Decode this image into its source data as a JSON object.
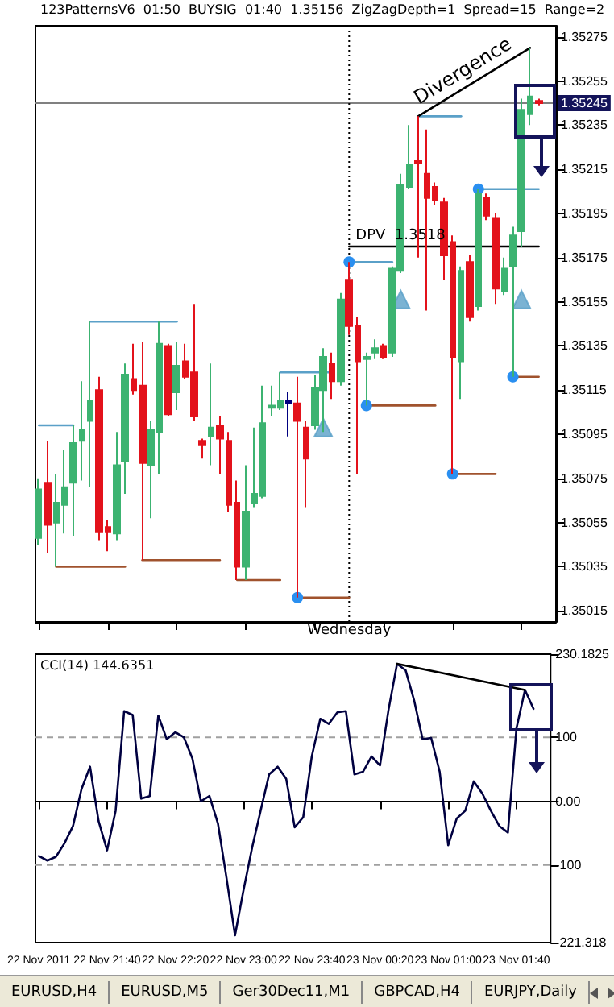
{
  "chart_data": [
    {
      "type": "candlestick",
      "title": "123PatternsV6  01:50  BUYSIG  01:40  1.35156  ZigZagDepth=1  Spread=15  Range=2",
      "x": [
        "2011-11-22T21:00",
        "2011-11-22T21:05",
        "2011-11-22T21:10",
        "2011-11-22T21:15",
        "2011-11-22T21:20",
        "2011-11-22T21:25",
        "2011-11-22T21:30",
        "2011-11-22T21:35",
        "2011-11-22T21:40",
        "2011-11-22T21:45",
        "2011-11-22T21:50",
        "2011-11-22T21:55",
        "2011-11-22T22:00",
        "2011-11-22T22:05",
        "2011-11-22T22:10",
        "2011-11-22T22:15",
        "2011-11-22T22:20",
        "2011-11-22T22:25",
        "2011-11-22T22:30",
        "2011-11-22T22:35",
        "2011-11-22T22:40",
        "2011-11-22T22:45",
        "2011-11-22T22:50",
        "2011-11-22T22:55",
        "2011-11-22T23:00",
        "2011-11-22T23:05",
        "2011-11-22T23:10",
        "2011-11-22T23:15",
        "2011-11-22T23:20",
        "2011-11-22T23:25",
        "2011-11-22T23:30",
        "2011-11-22T23:35",
        "2011-11-22T23:40",
        "2011-11-22T23:45",
        "2011-11-22T23:50",
        "2011-11-22T23:55",
        "2011-11-23T00:00",
        "2011-11-23T00:05",
        "2011-11-23T00:10",
        "2011-11-23T00:15",
        "2011-11-23T00:20",
        "2011-11-23T00:25",
        "2011-11-23T00:30",
        "2011-11-23T00:35",
        "2011-11-23T00:40",
        "2011-11-23T00:45",
        "2011-11-23T00:50",
        "2011-11-23T00:55",
        "2011-11-23T01:00",
        "2011-11-23T01:05",
        "2011-11-23T01:10",
        "2011-11-23T01:15",
        "2011-11-23T01:20",
        "2011-11-23T01:25",
        "2011-11-23T01:30",
        "2011-11-23T01:35",
        "2011-11-23T01:40",
        "2011-11-23T01:45",
        "2011-11-23T01:50"
      ],
      "ohlc": [
        [
          1.35048,
          1.35075,
          1.35045,
          1.3507
        ],
        [
          1.35073,
          1.35092,
          1.35041,
          1.35054
        ],
        [
          1.35055,
          1.35077,
          1.35035,
          1.35064
        ],
        [
          1.35063,
          1.35088,
          1.3505,
          1.35071
        ],
        [
          1.35073,
          1.35099,
          1.35049,
          1.35091
        ],
        [
          1.35092,
          1.35119,
          1.35074,
          1.35097
        ],
        [
          1.35101,
          1.35146,
          1.35071,
          1.3511
        ],
        [
          1.35115,
          1.35121,
          1.35047,
          1.35051
        ],
        [
          1.35053,
          1.35056,
          1.35042,
          1.35051
        ],
        [
          1.3505,
          1.35096,
          1.35047,
          1.35081
        ],
        [
          1.35083,
          1.35127,
          1.35068,
          1.35122
        ],
        [
          1.3512,
          1.35136,
          1.35113,
          1.35115
        ],
        [
          1.35117,
          1.35137,
          1.35038,
          1.35082
        ],
        [
          1.35081,
          1.35101,
          1.35057,
          1.35097
        ],
        [
          1.35096,
          1.35146,
          1.35077,
          1.35136
        ],
        [
          1.35135,
          1.35136,
          1.35103,
          1.35104
        ],
        [
          1.35114,
          1.35137,
          1.35106,
          1.35126
        ],
        [
          1.35128,
          1.35136,
          1.3512,
          1.35121
        ],
        [
          1.35123,
          1.35154,
          1.35101,
          1.35103
        ],
        [
          1.35092,
          1.35093,
          1.35084,
          1.3509
        ],
        [
          1.35094,
          1.35127,
          1.35081,
          1.35098
        ],
        [
          1.35099,
          1.35103,
          1.35077,
          1.35093
        ],
        [
          1.35092,
          1.35096,
          1.3506,
          1.35063
        ],
        [
          1.35064,
          1.35074,
          1.35029,
          1.35035
        ],
        [
          1.35035,
          1.35081,
          1.35029,
          1.3506
        ],
        [
          1.35064,
          1.35098,
          1.35062,
          1.35068
        ],
        [
          1.35067,
          1.35117,
          1.35066,
          1.351
        ],
        [
          1.35107,
          1.35117,
          1.35103,
          1.35108
        ],
        [
          1.35107,
          1.35123,
          1.35106,
          1.3511
        ],
        [
          1.3511,
          1.35114,
          1.35094,
          1.35109
        ],
        [
          1.35109,
          1.35121,
          1.35021,
          1.35101
        ],
        [
          1.35098,
          1.35101,
          1.35062,
          1.35084
        ],
        [
          1.35099,
          1.35122,
          1.35097,
          1.35116
        ],
        [
          1.35115,
          1.35134,
          1.35096,
          1.3513
        ],
        [
          1.35127,
          1.35132,
          1.35111,
          1.35119
        ],
        [
          1.35119,
          1.35159,
          1.35117,
          1.35156
        ],
        [
          1.35165,
          1.35173,
          1.3514,
          1.35144
        ],
        [
          1.35144,
          1.35148,
          1.35077,
          1.35128
        ],
        [
          1.35129,
          1.35132,
          1.35108,
          1.3513
        ],
        [
          1.35132,
          1.35138,
          1.35129,
          1.35134
        ],
        [
          1.35135,
          1.35136,
          1.35129,
          1.3513
        ],
        [
          1.35132,
          1.35171,
          1.3513,
          1.3517
        ],
        [
          1.35169,
          1.35213,
          1.35168,
          1.35208
        ],
        [
          1.35207,
          1.35235,
          1.35206,
          1.35217
        ],
        [
          1.35219,
          1.35239,
          1.35175,
          1.35218
        ],
        [
          1.35213,
          1.35233,
          1.35151,
          1.35202
        ],
        [
          1.35207,
          1.35209,
          1.35199,
          1.35201
        ],
        [
          1.352,
          1.35202,
          1.35165,
          1.35176
        ],
        [
          1.35182,
          1.35185,
          1.35077,
          1.3513
        ],
        [
          1.35128,
          1.35171,
          1.35111,
          1.35169
        ],
        [
          1.35173,
          1.35176,
          1.35146,
          1.35148
        ],
        [
          1.35153,
          1.35206,
          1.35151,
          1.35204
        ],
        [
          1.35202,
          1.35204,
          1.35192,
          1.35194
        ],
        [
          1.35193,
          1.35195,
          1.35154,
          1.35161
        ],
        [
          1.3516,
          1.35175,
          1.35158,
          1.3517
        ],
        [
          1.35171,
          1.35189,
          1.35121,
          1.35185
        ],
        [
          1.35187,
          1.35247,
          1.3518,
          1.35242
        ],
        [
          1.3524,
          1.3527,
          1.35235,
          1.35248
        ],
        [
          1.35246,
          1.35247,
          1.35244,
          1.35245
        ]
      ],
      "colors": [
        "#3cb371",
        "#e3121b",
        "#3cb371",
        "#3cb371",
        "#3cb371",
        "#3cb371",
        "#3cb371",
        "#e3121b",
        "#e3121b",
        "#3cb371",
        "#3cb371",
        "#e3121b",
        "#e3121b",
        "#3cb371",
        "#3cb371",
        "#e3121b",
        "#3cb371",
        "#e3121b",
        "#e3121b",
        "#e3121b",
        "#3cb371",
        "#e3121b",
        "#e3121b",
        "#e3121b",
        "#3cb371",
        "#3cb371",
        "#3cb371",
        "#3cb371",
        "#3cb371",
        "#000080",
        "#e3121b",
        "#e3121b",
        "#3cb371",
        "#3cb371",
        "#e3121b",
        "#3cb371",
        "#e3121b",
        "#e3121b",
        "#3cb371",
        "#3cb371",
        "#e3121b",
        "#3cb371",
        "#3cb371",
        "#3cb371",
        "#e3121b",
        "#e3121b",
        "#e3121b",
        "#e3121b",
        "#e3121b",
        "#3cb371",
        "#e3121b",
        "#3cb371",
        "#e3121b",
        "#e3121b",
        "#3cb371",
        "#3cb371",
        "#3cb371",
        "#3cb371",
        "#e3121b"
      ],
      "series": [
        {
          "type": "line",
          "color": "#5aa0c8",
          "x": [
            "2011-11-22T21:30",
            "2011-11-22T22:20"
          ],
          "values": [
            1.35146,
            1.35146
          ]
        },
        {
          "type": "line",
          "color": "#5aa0c8",
          "x": [
            "2011-11-22T21:00",
            "2011-11-22T21:20"
          ],
          "values": [
            1.35099,
            1.35099
          ]
        },
        {
          "type": "line",
          "color": "#5aa0c8",
          "x": [
            "2011-11-22T23:20",
            "2011-11-22T23:50"
          ],
          "values": [
            1.35123,
            1.35123
          ]
        },
        {
          "type": "line",
          "color": "#5aa0c8",
          "marker": "circle",
          "x": [
            "2011-11-23T00:00",
            "2011-11-23T00:25"
          ],
          "values": [
            1.35173,
            1.35173
          ]
        },
        {
          "type": "line",
          "color": "#5aa0c8",
          "x": [
            "2011-11-23T00:40",
            "2011-11-23T01:05"
          ],
          "values": [
            1.35239,
            1.35239
          ]
        },
        {
          "type": "line",
          "color": "#5aa0c8",
          "marker": "circle",
          "x": [
            "2011-11-23T01:15",
            "2011-11-23T01:50"
          ],
          "values": [
            1.35206,
            1.35206
          ]
        },
        {
          "type": "line",
          "color": "#a0522d",
          "x": [
            "2011-11-22T21:10",
            "2011-11-22T21:50"
          ],
          "values": [
            1.35035,
            1.35035
          ]
        },
        {
          "type": "line",
          "color": "#a0522d",
          "x": [
            "2011-11-22T22:00",
            "2011-11-22T22:45"
          ],
          "values": [
            1.35038,
            1.35038
          ]
        },
        {
          "type": "line",
          "color": "#a0522d",
          "x": [
            "2011-11-22T22:55",
            "2011-11-22T23:20"
          ],
          "values": [
            1.35029,
            1.35029
          ]
        },
        {
          "type": "line",
          "color": "#a0522d",
          "marker": "circle",
          "x": [
            "2011-11-22T23:30",
            "2011-11-23T00:00"
          ],
          "values": [
            1.35021,
            1.35021
          ]
        },
        {
          "type": "line",
          "color": "#a0522d",
          "marker": "circle",
          "x": [
            "2011-11-23T00:10",
            "2011-11-23T00:50"
          ],
          "values": [
            1.35108,
            1.35108
          ]
        },
        {
          "type": "line",
          "color": "#a0522d",
          "marker": "circle",
          "x": [
            "2011-11-23T01:00",
            "2011-11-23T01:25"
          ],
          "values": [
            1.35077,
            1.35077
          ]
        },
        {
          "type": "line",
          "color": "#a0522d",
          "marker": "circle",
          "x": [
            "2011-11-23T01:35",
            "2011-11-23T01:50"
          ],
          "values": [
            1.35121,
            1.35121
          ]
        },
        {
          "type": "line",
          "name": "DPV  1.3518",
          "color": "#000000",
          "x": [
            "2011-11-23T00:00",
            "2011-11-23T01:50"
          ],
          "values": [
            1.3518,
            1.3518
          ]
        },
        {
          "type": "line",
          "name": "Divergence",
          "color": "#000000",
          "x": [
            "2011-11-23T00:40",
            "2011-11-23T01:45"
          ],
          "values": [
            1.35239,
            1.3527
          ]
        },
        {
          "type": "scatter",
          "color": "#5aa0c8",
          "marker": "triangle",
          "x": [
            "2011-11-22T23:45",
            "2011-11-23T00:30",
            "2011-11-23T01:40"
          ],
          "values": [
            1.35098,
            1.35156,
            1.35156
          ]
        }
      ],
      "xlim": [
        "2011-11-22T20:58",
        "2011-11-23T02:00"
      ],
      "xticks": [
        {
          "value": "2011-11-22T21:00",
          "label": null
        },
        {
          "value": "2011-11-22T21:40",
          "label": null
        },
        {
          "value": "2011-11-22T22:20",
          "label": null
        },
        {
          "value": "2011-11-22T23:00",
          "label": null
        },
        {
          "value": "2011-11-22T23:40",
          "label": null
        },
        {
          "value": "2011-11-23T00:20",
          "label": null
        },
        {
          "value": "2011-11-23T01:00",
          "label": null
        },
        {
          "value": "2011-11-23T01:40",
          "label": null
        }
      ],
      "ylim": [
        1.3501,
        1.3528
      ],
      "yticks": [
        1.35015,
        1.35035,
        1.35055,
        1.35075,
        1.35095,
        1.35115,
        1.35135,
        1.35155,
        1.35175,
        1.35195,
        1.35215,
        1.35235,
        1.35255,
        1.35275
      ],
      "tick_labels": "y",
      "grid": false,
      "ref_lines": [
        {
          "axis": "y",
          "value": 1.35245,
          "label": "1.35245",
          "color": "#808080"
        },
        {
          "axis": "x",
          "value": "2011-11-23T00:00",
          "label": "Wednesday",
          "color": "#000000",
          "line_style": "dotted"
        }
      ]
    },
    {
      "type": "line",
      "title": "CCI(14) 144.6351",
      "x": [
        "2011-11-22T21:00",
        "2011-11-22T21:05",
        "2011-11-22T21:10",
        "2011-11-22T21:15",
        "2011-11-22T21:20",
        "2011-11-22T21:25",
        "2011-11-22T21:30",
        "2011-11-22T21:35",
        "2011-11-22T21:40",
        "2011-11-22T21:45",
        "2011-11-22T21:50",
        "2011-11-22T21:55",
        "2011-11-22T22:00",
        "2011-11-22T22:05",
        "2011-11-22T22:10",
        "2011-11-22T22:15",
        "2011-11-22T22:20",
        "2011-11-22T22:25",
        "2011-11-22T22:30",
        "2011-11-22T22:35",
        "2011-11-22T22:40",
        "2011-11-22T22:45",
        "2011-11-22T22:50",
        "2011-11-22T22:55",
        "2011-11-22T23:00",
        "2011-11-22T23:05",
        "2011-11-22T23:10",
        "2011-11-22T23:15",
        "2011-11-22T23:20",
        "2011-11-22T23:25",
        "2011-11-22T23:30",
        "2011-11-22T23:35",
        "2011-11-22T23:40",
        "2011-11-22T23:45",
        "2011-11-22T23:50",
        "2011-11-22T23:55",
        "2011-11-23T00:00",
        "2011-11-23T00:05",
        "2011-11-23T00:10",
        "2011-11-23T00:15",
        "2011-11-23T00:20",
        "2011-11-23T00:25",
        "2011-11-23T00:30",
        "2011-11-23T00:35",
        "2011-11-23T00:40",
        "2011-11-23T00:45",
        "2011-11-23T00:50",
        "2011-11-23T00:55",
        "2011-11-23T01:00",
        "2011-11-23T01:05",
        "2011-11-23T01:10",
        "2011-11-23T01:15",
        "2011-11-23T01:20",
        "2011-11-23T01:25",
        "2011-11-23T01:30",
        "2011-11-23T01:35",
        "2011-11-23T01:40",
        "2011-11-23T01:45",
        "2011-11-23T01:50"
      ],
      "series": [
        {
          "color": "#000040",
          "values": [
            -86,
            -93,
            -87,
            -66,
            -39,
            19,
            54,
            -31,
            -77,
            -15,
            141,
            135,
            4,
            8,
            134,
            97,
            108,
            100,
            67,
            0,
            8,
            -35,
            -120,
            -210,
            -139,
            -73,
            -15,
            42,
            54,
            35,
            -41,
            -25,
            70,
            129,
            121,
            139,
            141,
            42,
            46,
            70,
            56,
            143,
            215,
            205,
            158,
            97,
            99,
            46,
            -69,
            -27,
            -15,
            31,
            12,
            -15,
            -39,
            -49,
            114,
            174,
            144.6351
          ]
        },
        {
          "color": "#000000",
          "x": [
            "2011-11-23T00:30",
            "2011-11-23T01:45"
          ],
          "values": [
            215,
            174
          ]
        }
      ],
      "marker": "none",
      "grid": false,
      "xlim": [
        "2011-11-22T20:58",
        "2011-11-23T02:00"
      ],
      "xticks": [
        {
          "value": "2011-11-22T21:00",
          "label": "22 Nov 2011"
        },
        {
          "value": "2011-11-22T21:40",
          "label": "22 Nov 21:40"
        },
        {
          "value": "2011-11-22T22:20",
          "label": "22 Nov 22:20"
        },
        {
          "value": "2011-11-22T23:00",
          "label": "22 Nov 23:00"
        },
        {
          "value": "2011-11-22T23:40",
          "label": "22 Nov 23:40"
        },
        {
          "value": "2011-11-23T00:20",
          "label": "23 Nov 00:20"
        },
        {
          "value": "2011-11-23T01:00",
          "label": "23 Nov 01:00"
        },
        {
          "value": "2011-11-23T01:40",
          "label": "23 Nov 01:40"
        }
      ],
      "ylim": [
        -221.318,
        230.1825
      ],
      "yticks": [
        -221.318,
        -100,
        {
          "value": 0,
          "label": "0.00"
        },
        100,
        230.1825
      ],
      "ref_lines": [
        {
          "axis": "y",
          "value": 100,
          "color": "#a0a0a0",
          "line_style": "dashed"
        },
        {
          "axis": "y",
          "value": -100,
          "color": "#a0a0a0",
          "line_style": "dashed"
        }
      ],
      "annotations": [
        "EURUSD,H4",
        "EURUSD,M5",
        "Ger30Dec11,M1",
        "GBPCAD,H4",
        "EURJPY,Daily"
      ]
    }
  ]
}
